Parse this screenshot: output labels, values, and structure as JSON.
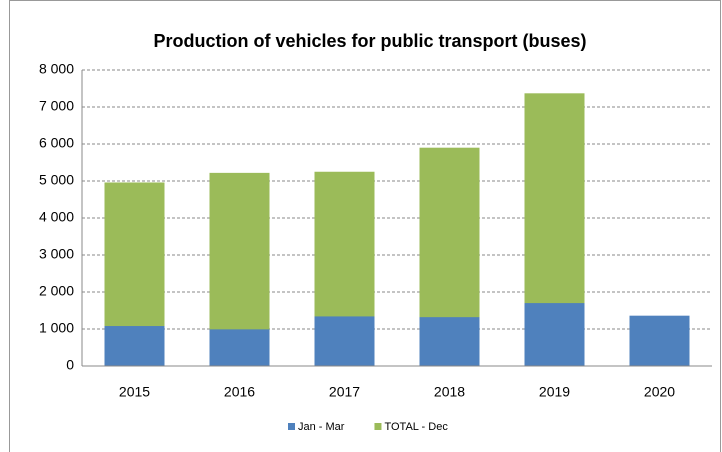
{
  "chart_data": {
    "type": "bar",
    "title": "Production of vehicles for public transport (buses)",
    "categories": [
      "2015",
      "2016",
      "2017",
      "2018",
      "2019",
      "2020"
    ],
    "series": [
      {
        "name": "Jan - Mar",
        "color": "#4f81bd",
        "values": [
          1080,
          990,
          1340,
          1320,
          1700,
          1360
        ]
      },
      {
        "name": "TOTAL - Dec",
        "color": "#9bbb59",
        "values": [
          4960,
          5220,
          5250,
          5900,
          7370,
          null
        ]
      }
    ],
    "ylim": [
      0,
      8000
    ],
    "yticks": [
      0,
      {
        "value": 1000,
        "label": "1 000"
      },
      {
        "value": 2000,
        "label": "2 000"
      },
      {
        "value": 3000,
        "label": "3 000"
      },
      {
        "value": 4000,
        "label": "4 000"
      },
      {
        "value": 5000,
        "label": "5 000"
      },
      {
        "value": 6000,
        "label": "6 000"
      },
      {
        "value": 7000,
        "label": "7 000"
      },
      {
        "value": 8000,
        "label": "8 000"
      }
    ],
    "grid": true,
    "legend": "bottom"
  }
}
